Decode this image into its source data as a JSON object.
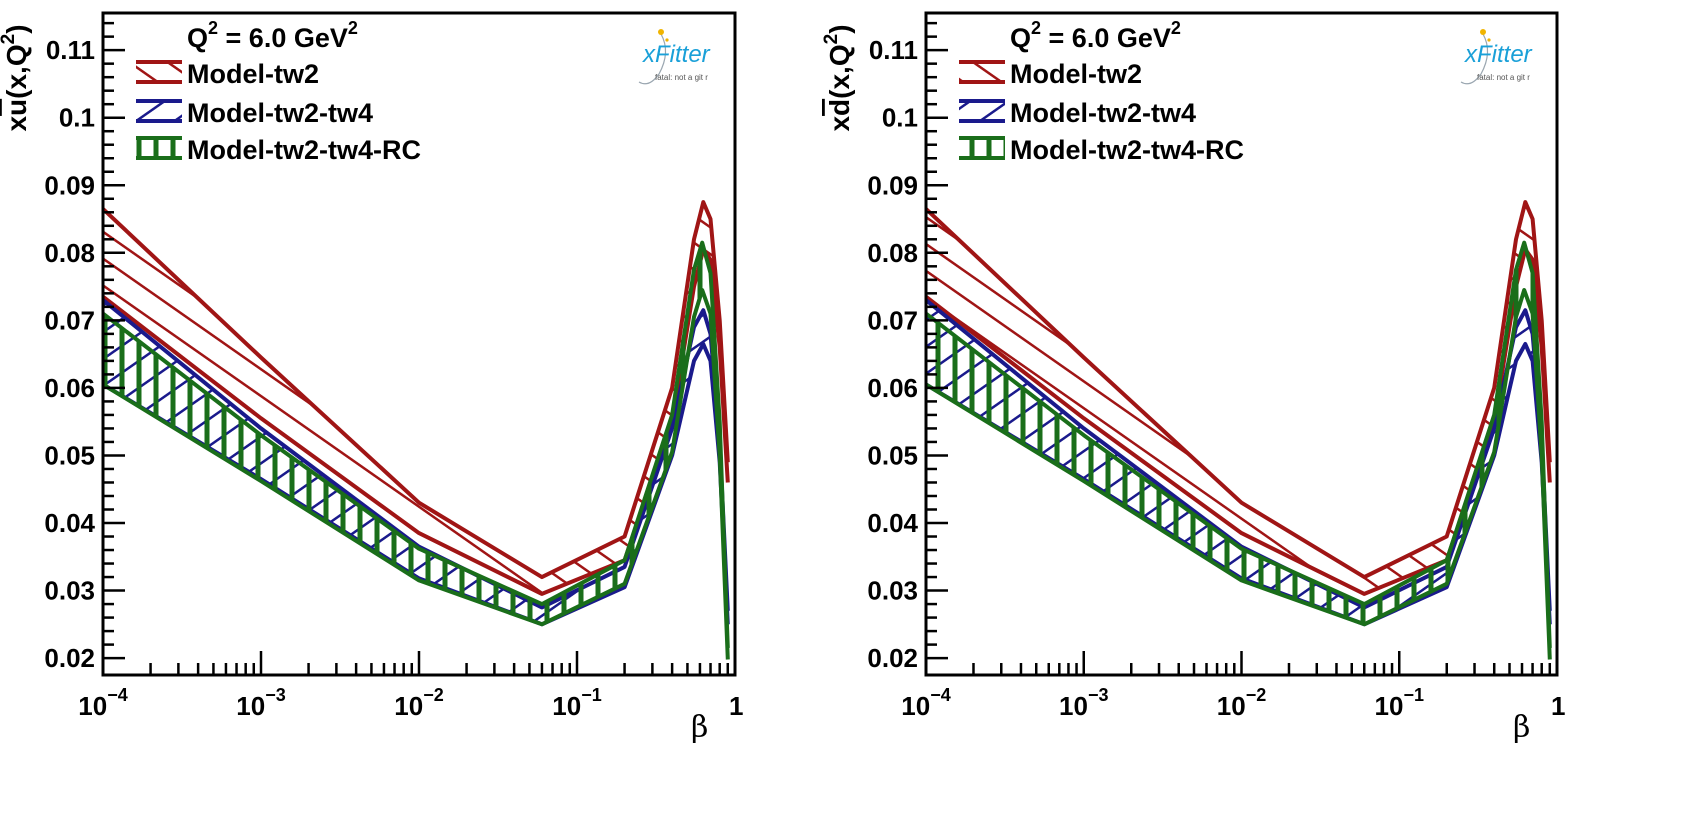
{
  "chart_data": [
    {
      "type": "line",
      "panel": "left",
      "ylabel": "xū(x,Q²)",
      "ylabel_parts": {
        "pre": "x",
        "bar": "u",
        "post": "(x,Q",
        "sup": "2",
        "end": ")"
      },
      "xlabel": "β",
      "x_scale": "log",
      "xlim": [
        0.0001,
        1
      ],
      "ylim": [
        0.0175,
        0.1155
      ],
      "x_ticks": [
        {
          "base": "10",
          "exp": "−4"
        },
        {
          "base": "10",
          "exp": "−3"
        },
        {
          "base": "10",
          "exp": "−2"
        },
        {
          "base": "10",
          "exp": "−1"
        },
        {
          "base": "1",
          "exp": ""
        }
      ],
      "y_ticks": [
        "0.02",
        "0.03",
        "0.04",
        "0.05",
        "0.06",
        "0.07",
        "0.08",
        "0.09",
        "0.1",
        "0.11"
      ],
      "annotation": {
        "pre": "Q",
        "sup": "2",
        "post": " = 6.0 GeV",
        "sup2": "2"
      },
      "logo": {
        "text": "xFitter",
        "sub": "fatal: not a git r"
      },
      "series": [
        {
          "name": "Model-tw2",
          "color": "#a01515",
          "hatch": "diag-up",
          "x": [
            0.0001,
            0.001,
            0.01,
            0.06,
            0.2,
            0.4,
            0.55,
            0.63,
            0.7,
            0.8,
            0.9
          ],
          "upper": [
            0.0865,
            0.0645,
            0.043,
            0.032,
            0.038,
            0.06,
            0.082,
            0.0875,
            0.085,
            0.07,
            0.049
          ],
          "lower": [
            0.0735,
            0.0555,
            0.0385,
            0.0295,
            0.0345,
            0.055,
            0.075,
            0.0805,
            0.079,
            0.066,
            0.046
          ]
        },
        {
          "name": "Model-tw2-tw4",
          "color": "#1a1a8c",
          "hatch": "diag-down",
          "x": [
            0.0001,
            0.001,
            0.01,
            0.06,
            0.2,
            0.4,
            0.55,
            0.63,
            0.7,
            0.8,
            0.9
          ],
          "upper": [
            0.073,
            0.054,
            0.0365,
            0.0275,
            0.0335,
            0.054,
            0.069,
            0.0715,
            0.068,
            0.052,
            0.027
          ],
          "lower": [
            0.0605,
            0.0465,
            0.0318,
            0.025,
            0.0305,
            0.05,
            0.064,
            0.0665,
            0.064,
            0.049,
            0.025
          ]
        },
        {
          "name": "Model-tw2-tw4-RC",
          "color": "#1a6e1a",
          "hatch": "grid",
          "x": [
            0.0001,
            0.001,
            0.01,
            0.06,
            0.2,
            0.4,
            0.55,
            0.62,
            0.7,
            0.8,
            0.9
          ],
          "upper": [
            0.071,
            0.053,
            0.0362,
            0.028,
            0.0345,
            0.056,
            0.0775,
            0.0815,
            0.077,
            0.055,
            0.0215
          ],
          "lower": [
            0.0605,
            0.0462,
            0.0315,
            0.025,
            0.031,
            0.0505,
            0.0705,
            0.0745,
            0.071,
            0.05,
            0.0198
          ]
        }
      ]
    },
    {
      "type": "line",
      "panel": "right",
      "ylabel": "xd̄(x,Q²)",
      "ylabel_parts": {
        "pre": "x",
        "bar": "d",
        "post": "(x,Q",
        "sup": "2",
        "end": ")"
      },
      "xlabel": "β",
      "x_scale": "log",
      "xlim": [
        0.0001,
        1
      ],
      "ylim": [
        0.0175,
        0.1155
      ],
      "x_ticks": [
        {
          "base": "10",
          "exp": "−4"
        },
        {
          "base": "10",
          "exp": "−3"
        },
        {
          "base": "10",
          "exp": "−2"
        },
        {
          "base": "10",
          "exp": "−1"
        },
        {
          "base": "1",
          "exp": ""
        }
      ],
      "y_ticks": [
        "0.02",
        "0.03",
        "0.04",
        "0.05",
        "0.06",
        "0.07",
        "0.08",
        "0.09",
        "0.1",
        "0.11"
      ],
      "annotation": {
        "pre": "Q",
        "sup": "2",
        "post": " = 6.0 GeV",
        "sup2": "2"
      },
      "logo": {
        "text": "xFitter",
        "sub": "fatal: not a git r"
      },
      "series": [
        {
          "name": "Model-tw2",
          "color": "#a01515",
          "hatch": "diag-up",
          "x": [
            0.0001,
            0.001,
            0.01,
            0.06,
            0.2,
            0.4,
            0.55,
            0.63,
            0.7,
            0.8,
            0.9
          ],
          "upper": [
            0.0865,
            0.0645,
            0.043,
            0.032,
            0.038,
            0.06,
            0.082,
            0.0875,
            0.085,
            0.07,
            0.049
          ],
          "lower": [
            0.0735,
            0.0555,
            0.0385,
            0.0295,
            0.0345,
            0.055,
            0.075,
            0.0805,
            0.079,
            0.066,
            0.046
          ]
        },
        {
          "name": "Model-tw2-tw4",
          "color": "#1a1a8c",
          "hatch": "diag-down",
          "x": [
            0.0001,
            0.001,
            0.01,
            0.06,
            0.2,
            0.4,
            0.55,
            0.63,
            0.7,
            0.8,
            0.9
          ],
          "upper": [
            0.073,
            0.054,
            0.0365,
            0.0275,
            0.0335,
            0.054,
            0.069,
            0.0715,
            0.068,
            0.052,
            0.027
          ],
          "lower": [
            0.0605,
            0.0465,
            0.0318,
            0.025,
            0.0305,
            0.05,
            0.064,
            0.0665,
            0.064,
            0.049,
            0.025
          ]
        },
        {
          "name": "Model-tw2-tw4-RC",
          "color": "#1a6e1a",
          "hatch": "grid",
          "x": [
            0.0001,
            0.001,
            0.01,
            0.06,
            0.2,
            0.4,
            0.55,
            0.62,
            0.7,
            0.8,
            0.9
          ],
          "upper": [
            0.071,
            0.053,
            0.0362,
            0.028,
            0.0345,
            0.056,
            0.0775,
            0.0815,
            0.077,
            0.055,
            0.0215
          ],
          "lower": [
            0.0605,
            0.0462,
            0.0315,
            0.025,
            0.031,
            0.0505,
            0.0705,
            0.0745,
            0.071,
            0.05,
            0.0198
          ]
        }
      ]
    }
  ]
}
